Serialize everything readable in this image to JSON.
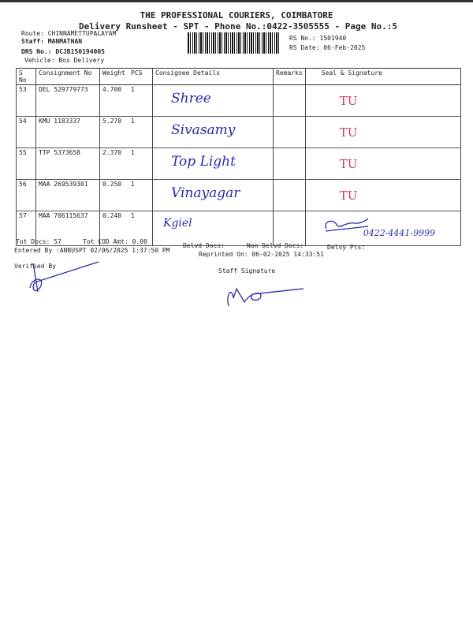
{
  "header": {
    "title": "THE PROFESSIONAL COURIERS, COIMBATORE",
    "subtitle": "Delivery Runsheet - SPT - Phone No.:0422-3505555 - Page No.:5",
    "route": "Route: CHINNAMETTUPALAYAM",
    "staff": "Staff: MANMATHAN",
    "drs_no": "DRS No.: DCJB150194005",
    "vehicle": "Vehicle: Box Delivery",
    "rs_no": "RS No.: 1501940",
    "rs_date": "RS Date: 06-Feb-2025"
  },
  "table": {
    "columns": [
      "S No",
      "Consignment No",
      "Weight",
      "PCS",
      "Consignee Details",
      "Remarks",
      "Seal & Signature"
    ],
    "rows": [
      {
        "sno": "53",
        "consignment": "DEL 529779773",
        "weight": "4.700",
        "pcs": "1",
        "consignee": "Shree",
        "seal": "TU"
      },
      {
        "sno": "54",
        "consignment": "KMU 1183337",
        "weight": "5.270",
        "pcs": "1",
        "consignee": "Sivasamy",
        "seal": "TU"
      },
      {
        "sno": "55",
        "consignment": "TTP 5373658",
        "weight": "2.370",
        "pcs": "1",
        "consignee": "Top Light",
        "seal": "TU"
      },
      {
        "sno": "56",
        "consignment": "MAA 269539301",
        "weight": "0.250",
        "pcs": "1",
        "consignee": "Vinayagar",
        "seal": "TU"
      },
      {
        "sno": "57",
        "consignment": "MAA 706115637",
        "weight": "0.240",
        "pcs": "1",
        "consignee": "Kgiel",
        "seal": "0422-4441-9999"
      }
    ]
  },
  "footer": {
    "tot_docs": "Tot Docs:  57",
    "tot_cod": "Tot COD Amt:    0.00",
    "delvd": "Delvd Docs:",
    "non_delvd": "Non Delvd Docs:",
    "delvy_pts": "Delvy Pts:",
    "entered_by": "Entered By :ANBUSPT 02/06/2025 1:37:50 PM",
    "reprinted": "Reprinted On: 06-02-2025 14:33:51",
    "verified_by": "Verified By",
    "staff_signature": "Staff Signature"
  },
  "colors": {
    "ink": "#2a2aa8",
    "seal": "#d23a5a"
  }
}
